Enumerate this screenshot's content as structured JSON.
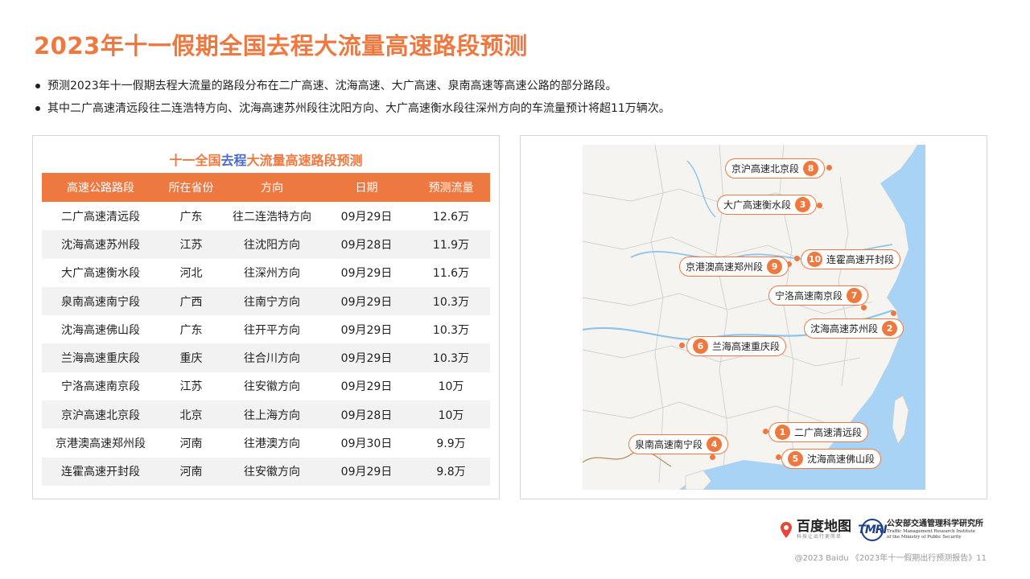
{
  "page": {
    "title": "2023年十一假期全国去程大流量高速路段预测",
    "bullets": [
      "预测2023年十一假期去程大流量的路段分布在二广高速、沈海高速、大广高速、泉南高速等高速公路的部分路段。",
      "其中二广高速清远段往二连浩特方向、沈海高速苏州段往沈阳方向、大广高速衡水段往深州方向的车流量预计将超11万辆次。"
    ]
  },
  "table": {
    "title_pre": "十一全国",
    "title_hl": "去程",
    "title_post": "大流量高速路段预测",
    "headers": [
      "高速公路路段",
      "所在省份",
      "方向",
      "日期",
      "预测流量"
    ],
    "rows": [
      [
        "二广高速清远段",
        "广东",
        "往二连浩特方向",
        "09月29日",
        "12.6万"
      ],
      [
        "沈海高速苏州段",
        "江苏",
        "往沈阳方向",
        "09月28日",
        "11.9万"
      ],
      [
        "大广高速衡水段",
        "河北",
        "往深州方向",
        "09月29日",
        "11.6万"
      ],
      [
        "泉南高速南宁段",
        "广西",
        "往南宁方向",
        "09月29日",
        "10.3万"
      ],
      [
        "沈海高速佛山段",
        "广东",
        "往开平方向",
        "09月29日",
        "10.3万"
      ],
      [
        "兰海高速重庆段",
        "重庆",
        "往合川方向",
        "09月29日",
        "10.3万"
      ],
      [
        "宁洛高速南京段",
        "江苏",
        "往安徽方向",
        "09月29日",
        "10万"
      ],
      [
        "京沪高速北京段",
        "北京",
        "往上海方向",
        "09月28日",
        "10万"
      ],
      [
        "京港澳高速郑州段",
        "河南",
        "往港澳方向",
        "09月30日",
        "9.9万"
      ],
      [
        "连霍高速开封段",
        "河南",
        "往安徽方向",
        "09月29日",
        "9.8万"
      ]
    ]
  },
  "map": {
    "pins": [
      {
        "num": "8",
        "label": "京沪高速北京段"
      },
      {
        "num": "3",
        "label": "大广高速衡水段"
      },
      {
        "num": "10",
        "label": "连霍高速开封段"
      },
      {
        "num": "9",
        "label": "京港澳高速郑州段"
      },
      {
        "num": "7",
        "label": "宁洛高速南京段"
      },
      {
        "num": "2",
        "label": "沈海高速苏州段"
      },
      {
        "num": "6",
        "label": "兰海高速重庆段"
      },
      {
        "num": "1",
        "label": "二广高速清远段"
      },
      {
        "num": "4",
        "label": "泉南高速南宁段"
      },
      {
        "num": "5",
        "label": "沈海高速佛山段"
      }
    ],
    "colors": {
      "accent": "#ee7940",
      "water": "#a9d3f5",
      "land": "#f5f4f1"
    }
  },
  "logos": {
    "baidu_name": "百度地图",
    "baidu_sub": "科技让出行更简单",
    "tmri_mark": "TMRI",
    "tmri_name": "公安部交通管理科学研究所",
    "tmri_en_1": "Traffic Management Research Institute",
    "tmri_en_2": "of the Ministry of Public Security"
  },
  "footer": "@2023 Baidu 《2023年十一假期出行预测报告》11"
}
